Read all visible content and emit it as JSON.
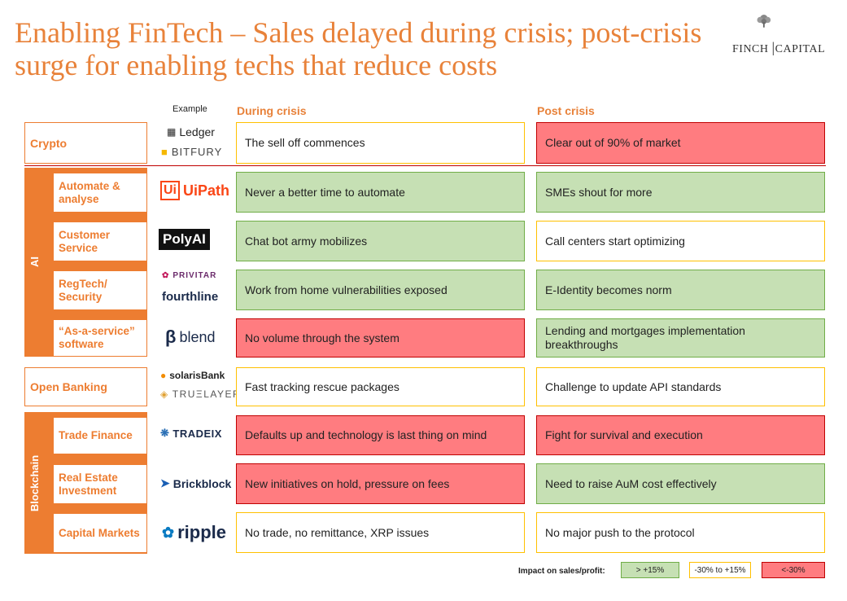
{
  "title": "Enabling FinTech – Sales delayed during crisis; post-crisis surge for enabling techs that reduce costs",
  "logo": {
    "left": "FINCH",
    "right": "CAPITAL"
  },
  "headers": {
    "example": "Example",
    "during": "During crisis",
    "post": "Post crisis"
  },
  "groups": {
    "ai": "AI",
    "blockchain": "Blockchain"
  },
  "rows": [
    {
      "category": "Crypto",
      "brands": [
        "Ledger",
        "BITFURY"
      ],
      "during": "The sell off commences",
      "during_status": "neutral",
      "post": "Clear out of 90% of market",
      "post_status": "negative"
    },
    {
      "category": "Automate & analyse",
      "brands": [
        "UiPath"
      ],
      "during": "Never a better time to automate",
      "during_status": "positive",
      "post": "SMEs shout for more",
      "post_status": "positive"
    },
    {
      "category": "Customer Service",
      "brands": [
        "PolyAI"
      ],
      "during": "Chat bot army mobilizes",
      "during_status": "positive",
      "post": "Call centers start optimizing",
      "post_status": "neutral"
    },
    {
      "category": "RegTech/ Security",
      "brands": [
        "PRIVITAR",
        "fourthline"
      ],
      "during": "Work from home vulnerabilities exposed",
      "during_status": "positive",
      "post": "E-Identity becomes norm",
      "post_status": "positive"
    },
    {
      "category": "“As-a-service” software",
      "brands": [
        "blend"
      ],
      "during": "No volume through the system",
      "during_status": "negative",
      "post": "Lending and mortgages implementation breakthroughs",
      "post_status": "positive"
    },
    {
      "category": "Open Banking",
      "brands": [
        "solarisBank",
        "TRUΞLAYER"
      ],
      "during": "Fast tracking rescue packages",
      "during_status": "neutral",
      "post": "Challenge to update API standards",
      "post_status": "neutral"
    },
    {
      "category": "Trade Finance",
      "brands": [
        "TRADEIX"
      ],
      "during": "Defaults up and technology is last thing on mind",
      "during_status": "negative",
      "post": "Fight for survival and execution",
      "post_status": "negative"
    },
    {
      "category": "Real Estate Investment",
      "brands": [
        "Brickblock"
      ],
      "during": "New initiatives on hold, pressure on fees",
      "during_status": "negative",
      "post": "Need to raise AuM cost effectively",
      "post_status": "positive"
    },
    {
      "category": "Capital Markets",
      "brands": [
        "ripple"
      ],
      "during": "No trade, no remittance, XRP issues",
      "during_status": "neutral",
      "post": "No major push to the protocol",
      "post_status": "neutral"
    }
  ],
  "legend": {
    "label": "Impact on sales/profit:",
    "positive": "> +15%",
    "neutral": "-30% to +15%",
    "negative": "<-30%"
  },
  "colors": {
    "accent": "#ed7d31",
    "positive": "#c6e0b4",
    "negative": "#ff7c80",
    "neutral_border": "#ffc000"
  }
}
